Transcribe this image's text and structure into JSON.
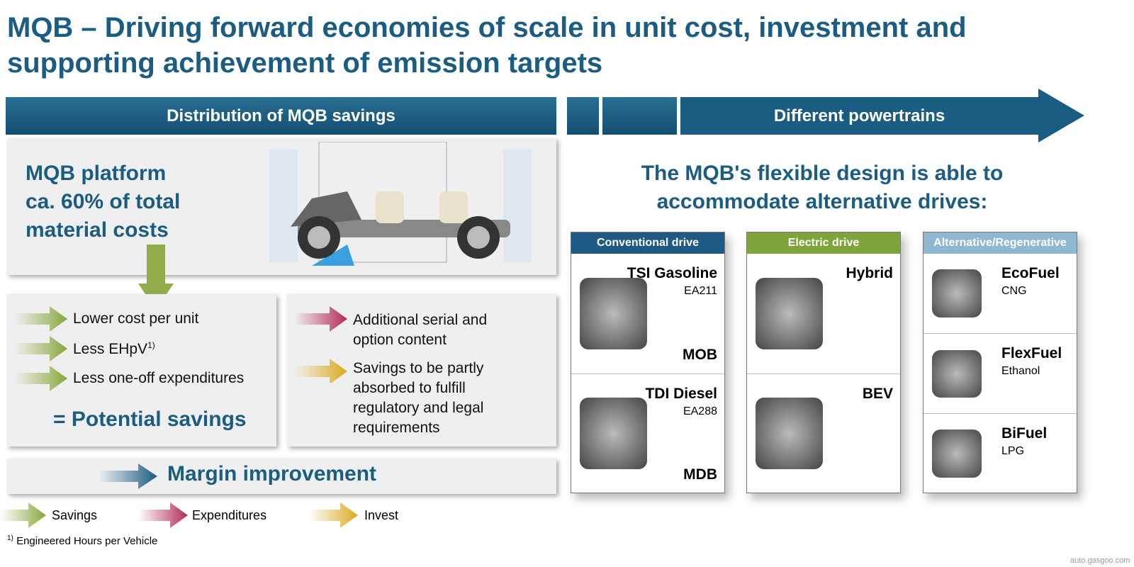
{
  "title": "MQB – Driving forward economies of scale in unit cost, investment and supporting achievement of emission targets",
  "left": {
    "header": "Distribution of MQB savings",
    "platform": [
      "MQB platform",
      "ca. 60% of total",
      "material costs"
    ],
    "savings": [
      {
        "text": "Lower cost per unit"
      },
      {
        "text": "Less EHpV",
        "note": "1)"
      },
      {
        "text": "Less one-off expenditures"
      }
    ],
    "result": "= Potential savings",
    "other": [
      "Additional serial and option content",
      "Savings to be partly absorbed to fulfill regulatory and legal requirements"
    ],
    "margin": "Margin improvement"
  },
  "legend": [
    "Savings",
    "Expenditures",
    "Invest"
  ],
  "footnote": {
    "mark": "1)",
    "text": "Engineered Hours per Vehicle"
  },
  "right": {
    "header": "Different powertrains",
    "subtitle": "The MQB's flexible design is able to accommodate alternative drives:",
    "columns": [
      {
        "title": "Conventional drive",
        "color": "#1f5a84",
        "items": [
          {
            "name": "TSI Gasoline",
            "code": "EA211",
            "platform": "MOB"
          },
          {
            "name": "TDI Diesel",
            "code": "EA288",
            "platform": "MDB"
          }
        ]
      },
      {
        "title": "Electric drive",
        "color": "#7ea43b",
        "items": [
          {
            "name": "Hybrid"
          },
          {
            "name": "BEV"
          }
        ]
      },
      {
        "title": "Alternative/Regenerative",
        "color": "#8fb8d0",
        "items": [
          {
            "name": "EcoFuel",
            "code": "CNG"
          },
          {
            "name": "FlexFuel",
            "code": "Ethanol"
          },
          {
            "name": "BiFuel",
            "code": "LPG"
          }
        ]
      }
    ]
  },
  "watermark": "auto.gasgoo.com"
}
